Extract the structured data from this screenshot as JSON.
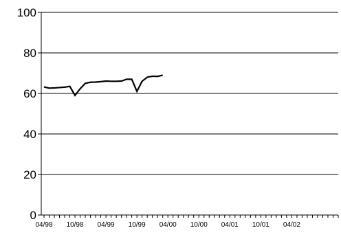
{
  "chart_data": {
    "type": "line",
    "title": "",
    "xlabel": "",
    "ylabel": "",
    "ylim": [
      0,
      100
    ],
    "yticks": [
      "0",
      "20",
      "40",
      "60",
      "80",
      "100"
    ],
    "xticks": [
      "04/98",
      "10/98",
      "04/99",
      "10/99",
      "04/00",
      "10/00",
      "04/01",
      "10/01",
      "04/02"
    ],
    "grid": "horizontal",
    "legend": "none",
    "colors": {
      "line": "#000000",
      "grid": "#000000",
      "axis": "#000000"
    },
    "series": [
      {
        "points": [
          {
            "x": "04/98",
            "y": 63.2
          },
          {
            "x": "05/98",
            "y": 62.6
          },
          {
            "x": "06/98",
            "y": 62.7
          },
          {
            "x": "07/98",
            "y": 62.9
          },
          {
            "x": "08/98",
            "y": 63.1
          },
          {
            "x": "09/98",
            "y": 63.5
          },
          {
            "x": "10/98",
            "y": 59.0
          },
          {
            "x": "11/98",
            "y": 62.3
          },
          {
            "x": "12/98",
            "y": 65.0
          },
          {
            "x": "01/99",
            "y": 65.5
          },
          {
            "x": "02/99",
            "y": 65.6
          },
          {
            "x": "03/99",
            "y": 65.8
          },
          {
            "x": "04/99",
            "y": 66.1
          },
          {
            "x": "05/99",
            "y": 66.0
          },
          {
            "x": "06/99",
            "y": 66.0
          },
          {
            "x": "07/99",
            "y": 66.1
          },
          {
            "x": "08/99",
            "y": 67.0
          },
          {
            "x": "09/99",
            "y": 67.0
          },
          {
            "x": "10/99",
            "y": 61.0
          },
          {
            "x": "11/99",
            "y": 66.0
          },
          {
            "x": "12/99",
            "y": 68.0
          },
          {
            "x": "01/00",
            "y": 68.5
          },
          {
            "x": "02/00",
            "y": 68.4
          },
          {
            "x": "03/00",
            "y": 69.0
          }
        ]
      }
    ]
  }
}
